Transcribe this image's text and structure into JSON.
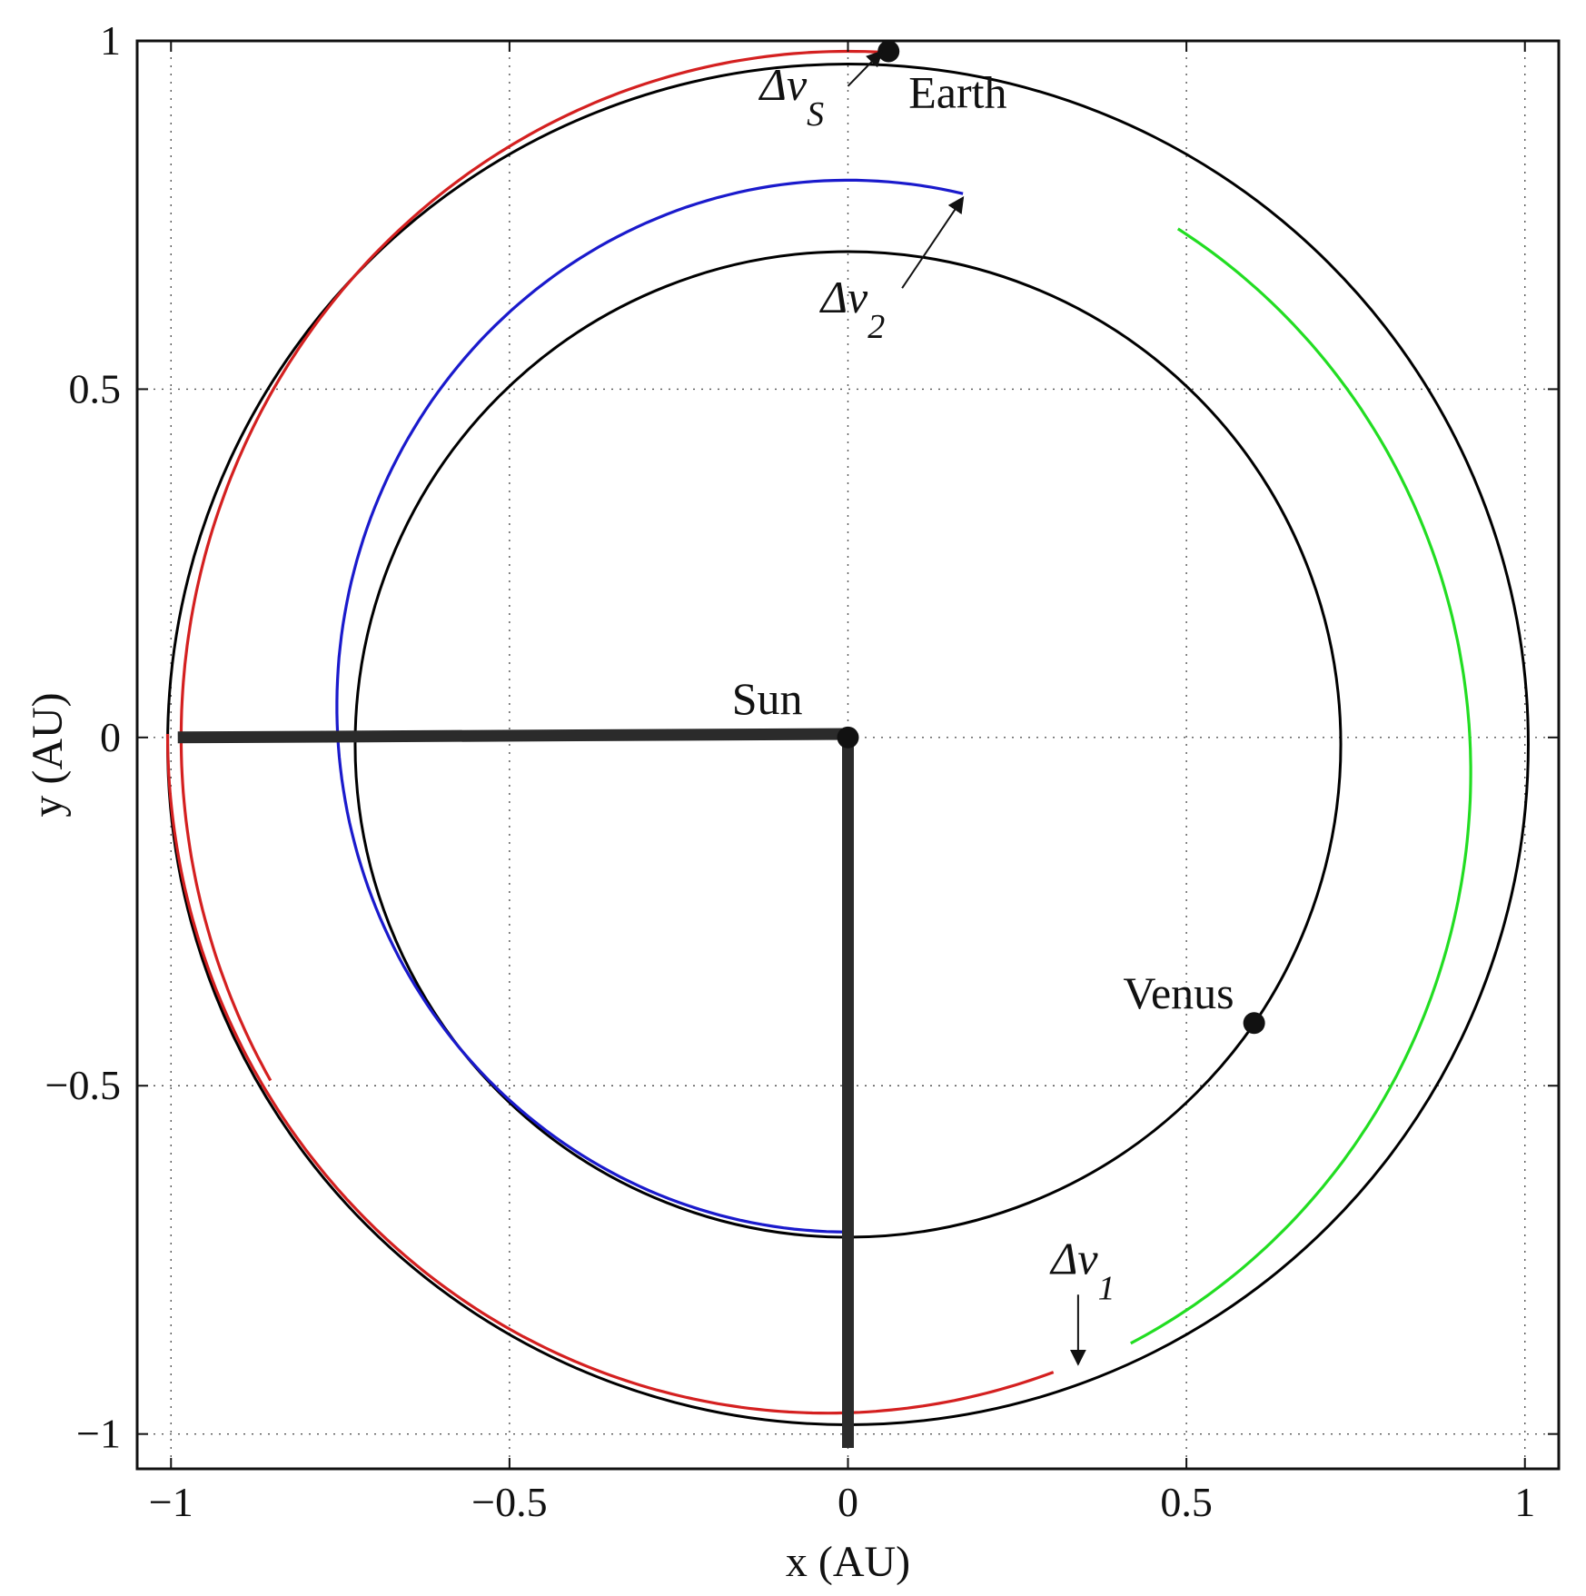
{
  "chart_data": {
    "type": "line",
    "title": "",
    "xlabel": "x (AU)",
    "ylabel": "y (AU)",
    "xlim": [
      -1.05,
      1.05
    ],
    "ylim": [
      -1.05,
      1.0
    ],
    "grid": true,
    "xticks": [
      -1,
      -0.5,
      0,
      0.5,
      1
    ],
    "yticks": [
      1,
      0.5,
      0,
      -0.5,
      -1
    ],
    "xtick_labels": [
      "−1",
      "−0.5",
      "0",
      "0.5",
      "1"
    ],
    "ytick_labels": [
      "1",
      "0.5",
      "0",
      "−0.5",
      "−1"
    ],
    "colors": {
      "orbit": "#000000",
      "transfer_red": "#d42020",
      "transfer_green": "#22dd22",
      "transfer_blue": "#1a1acc",
      "axes_lines": "#2b2b2b"
    },
    "series": [
      {
        "kind": "circle",
        "cx": 0.0,
        "cy": -0.01,
        "r": 1.005,
        "color": "orbit"
      },
      {
        "kind": "circle",
        "cx": 0.0,
        "cy": -0.01,
        "r": 0.728,
        "color": "orbit"
      },
      {
        "kind": "arc",
        "cx": 0.0,
        "cy": 0.0,
        "r": 0.985,
        "start_deg": 87,
        "end_deg": 210,
        "color": "transfer_red"
      },
      {
        "kind": "arc",
        "cx": -0.03,
        "cy": 0.005,
        "r": 0.975,
        "start_deg": 180,
        "end_deg": 290,
        "color": "transfer_red"
      },
      {
        "kind": "arc",
        "cx": 0.0,
        "cy": -0.05,
        "r": 0.92,
        "start_deg": -63,
        "end_deg": 58,
        "color": "transfer_green"
      },
      {
        "kind": "arc",
        "cx": 0.0,
        "cy": 0.045,
        "r": 0.755,
        "start_deg": 77,
        "end_deg": 270,
        "color": "transfer_blue"
      },
      {
        "kind": "polyline",
        "points": [
          [
            -0.99,
            0.0
          ],
          [
            0.0,
            0.005
          ],
          [
            0.0,
            -1.02
          ]
        ],
        "color": "axes_lines",
        "width": "thick"
      }
    ],
    "points": [
      {
        "label": "Sun",
        "x": 0.0,
        "y": 0.0
      },
      {
        "label": "Earth",
        "x": 0.06,
        "y": 0.985
      },
      {
        "label": "Venus",
        "x": 0.6,
        "y": -0.41
      }
    ],
    "annotations": [
      {
        "label": "Δv",
        "sub": "S",
        "text_x": -0.13,
        "text_y": 0.915,
        "arrow_from": [
          0.0,
          0.935
        ],
        "arrow_to": [
          0.05,
          0.985
        ]
      },
      {
        "label": "Δv",
        "sub": "2",
        "text_x": -0.04,
        "text_y": 0.61,
        "arrow_from": [
          0.08,
          0.645
        ],
        "arrow_to": [
          0.17,
          0.775
        ]
      },
      {
        "label": "Δv",
        "sub": "1",
        "text_x": 0.3,
        "text_y": -0.77,
        "arrow_from": [
          0.34,
          -0.8
        ],
        "arrow_to": [
          0.34,
          -0.9
        ]
      }
    ]
  }
}
